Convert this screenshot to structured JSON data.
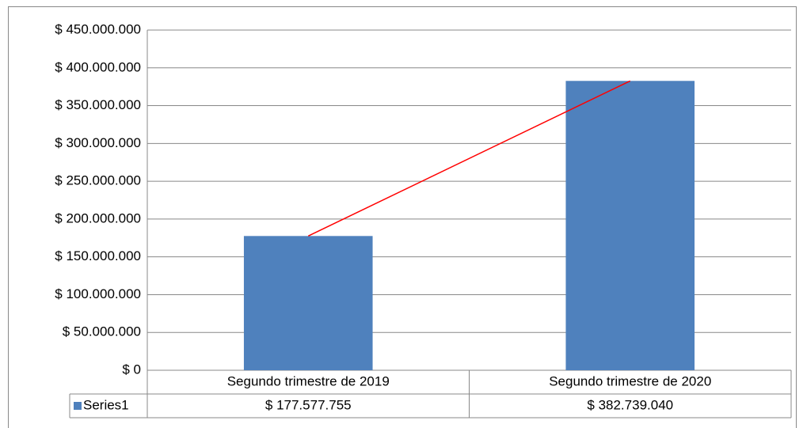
{
  "chart_data": {
    "type": "bar",
    "categories": [
      "Segundo trimestre de 2019",
      "Segundo trimestre de 2020"
    ],
    "series": [
      {
        "name": "Series1",
        "color": "#4f81bd",
        "values": [
          177577755,
          382739040
        ],
        "value_labels": [
          "$ 177.577.755",
          "$ 382.739.040"
        ]
      }
    ],
    "ylim": [
      0,
      450000000
    ],
    "yticks": [
      {
        "value": 0,
        "label": "$ 0"
      },
      {
        "value": 50000000,
        "label": "$ 50.000.000"
      },
      {
        "value": 100000000,
        "label": "$ 100.000.000"
      },
      {
        "value": 150000000,
        "label": "$ 150.000.000"
      },
      {
        "value": 200000000,
        "label": "$ 200.000.000"
      },
      {
        "value": 250000000,
        "label": "$ 250.000.000"
      },
      {
        "value": 300000000,
        "label": "$ 300.000.000"
      },
      {
        "value": 350000000,
        "label": "$ 350.000.000"
      },
      {
        "value": 400000000,
        "label": "$ 400.000.000"
      },
      {
        "value": 450000000,
        "label": "$ 450.000.000"
      }
    ],
    "grid": true,
    "trendline_color": "#ff0000",
    "data_table": true
  }
}
